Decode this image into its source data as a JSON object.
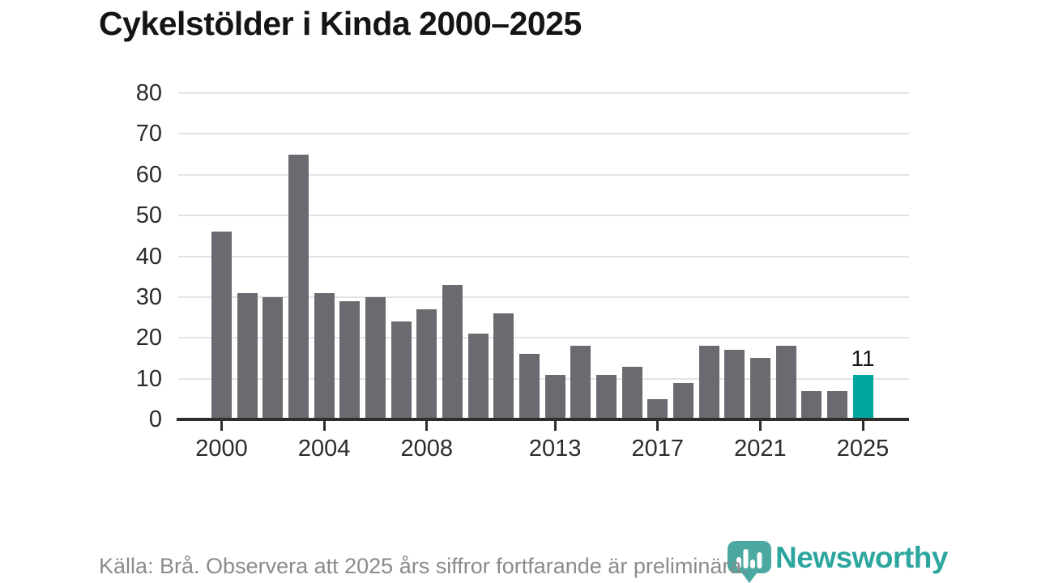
{
  "header": {
    "title": "Cykelstölder i Kinda 2000–2025"
  },
  "chart_data": {
    "type": "bar",
    "title": "Cykelstölder i Kinda 2000–2025",
    "categories": [
      2000,
      2001,
      2002,
      2003,
      2004,
      2005,
      2006,
      2007,
      2008,
      2009,
      2010,
      2011,
      2012,
      2013,
      2014,
      2015,
      2016,
      2017,
      2018,
      2019,
      2020,
      2021,
      2022,
      2023,
      2024,
      2025
    ],
    "values": [
      46,
      31,
      30,
      65,
      31,
      29,
      30,
      24,
      27,
      33,
      21,
      26,
      16,
      11,
      18,
      11,
      13,
      5,
      9,
      18,
      17,
      15,
      18,
      7,
      7,
      11
    ],
    "ylim": [
      0,
      80
    ],
    "yticks": [
      0,
      10,
      20,
      30,
      40,
      50,
      60,
      70,
      80
    ],
    "xticks": [
      2000,
      2004,
      2008,
      2013,
      2017,
      2021,
      2025
    ],
    "grid": true,
    "legend": "none",
    "bar_color": "#6b6a70",
    "highlight": {
      "year": 2025,
      "value": 11,
      "label": "11",
      "color": "#00a69b"
    }
  },
  "footer": {
    "source_note": "Källa: Brå. Observera att 2025 års siffror fortfarande är preliminära."
  },
  "branding": {
    "wordmark": "Newsworthy",
    "wordmark_color": "#2ca69e",
    "icon": "newsworthy-pin-barchart-icon",
    "icon_color": "#4ba9a1"
  }
}
